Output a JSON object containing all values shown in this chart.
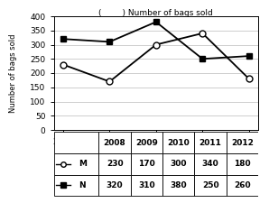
{
  "years": [
    2008,
    2009,
    2010,
    2011,
    2012
  ],
  "store_M": [
    230,
    170,
    300,
    340,
    180
  ],
  "store_N": [
    320,
    310,
    380,
    250,
    260
  ],
  "title": "(        ) Number of bags sold",
  "ylabel": "Number of bags sold",
  "ylim": [
    0,
    400
  ],
  "yticks": [
    0,
    50,
    100,
    150,
    200,
    250,
    300,
    350,
    400
  ],
  "line_color": "#000000",
  "marker_M": "o",
  "marker_N": "s",
  "background_color": "#ffffff",
  "grid_color": "#bbbbbb",
  "table_col_labels": [
    "2008",
    "2009",
    "2010",
    "2011",
    "2012"
  ],
  "table_row_M": [
    230,
    170,
    300,
    340,
    180
  ],
  "table_row_N": [
    320,
    310,
    380,
    250,
    260
  ]
}
